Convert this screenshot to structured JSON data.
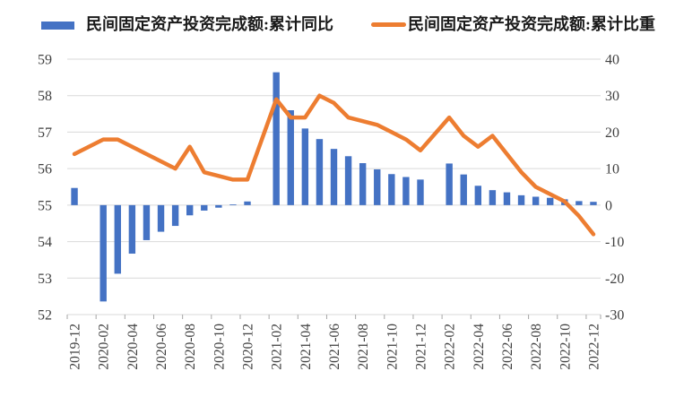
{
  "legend": {
    "items": [
      {
        "label": "民间固定资产投资完成额:累计同比",
        "marker": "bar",
        "color": "#4472C4"
      },
      {
        "label": "民间固定资产投资完成额:累计比重",
        "marker": "line",
        "color": "#ED7D31"
      }
    ]
  },
  "chart_data": {
    "type": "combo",
    "categories": [
      "2019-12",
      "2020-02",
      "2020-03",
      "2020-04",
      "2020-05",
      "2020-06",
      "2020-07",
      "2020-08",
      "2020-09",
      "2020-10",
      "2020-11",
      "2020-12",
      "2021-02",
      "2021-03",
      "2021-04",
      "2021-05",
      "2021-06",
      "2021-07",
      "2021-08",
      "2021-09",
      "2021-10",
      "2021-11",
      "2021-12",
      "2022-02",
      "2022-03",
      "2022-04",
      "2022-05",
      "2022-06",
      "2022-07",
      "2022-08",
      "2022-09",
      "2022-10",
      "2022-11",
      "2022-12"
    ],
    "series": [
      {
        "name": "民间固定资产投资完成额:累计同比",
        "type": "bar",
        "axis": "right",
        "color": "#4472C4",
        "values": [
          4.7,
          -26.4,
          -18.8,
          -13.3,
          -9.6,
          -7.3,
          -5.7,
          -2.8,
          -1.5,
          -0.7,
          0.2,
          1.0,
          36.4,
          26.0,
          21.0,
          18.1,
          15.4,
          13.4,
          11.5,
          9.8,
          8.5,
          7.7,
          7.0,
          11.4,
          8.4,
          5.3,
          4.1,
          3.5,
          2.7,
          2.3,
          2.0,
          1.6,
          1.1,
          0.9
        ]
      },
      {
        "name": "民间固定资产投资完成额:累计比重",
        "type": "line",
        "axis": "left",
        "color": "#ED7D31",
        "values": [
          56.4,
          56.8,
          56.8,
          56.6,
          56.4,
          56.2,
          56.0,
          56.6,
          55.9,
          55.8,
          55.7,
          55.7,
          57.9,
          57.4,
          57.4,
          58.0,
          57.8,
          57.4,
          57.3,
          57.2,
          57.0,
          56.8,
          56.5,
          57.4,
          56.9,
          56.6,
          56.9,
          56.4,
          55.9,
          55.5,
          55.3,
          55.1,
          54.7,
          54.2
        ]
      }
    ],
    "left_axis": {
      "min": 52,
      "max": 59,
      "ticks": [
        59,
        58,
        57,
        56,
        55,
        54,
        53,
        52
      ]
    },
    "right_axis": {
      "min": -30,
      "max": 40,
      "ticks": [
        40,
        30,
        20,
        10,
        0,
        -10,
        -20,
        -30
      ]
    },
    "x_tick_labels": [
      "2019-12",
      "2020-02",
      "2020-04",
      "2020-06",
      "2020-08",
      "2020-10",
      "2020-12",
      "2021-02",
      "2021-04",
      "2021-06",
      "2021-08",
      "2021-10",
      "2021-12",
      "2022-02",
      "2022-04",
      "2022-06",
      "2022-08",
      "2022-10",
      "2022-12"
    ],
    "x_gap_categories": [
      "2020-01",
      "2021-01",
      "2022-01"
    ],
    "grid": true,
    "legend_position": "top",
    "colors": {
      "gridline": "#D9D9D9",
      "axis_text": "#404040",
      "tick": "#A6A6A6"
    }
  }
}
